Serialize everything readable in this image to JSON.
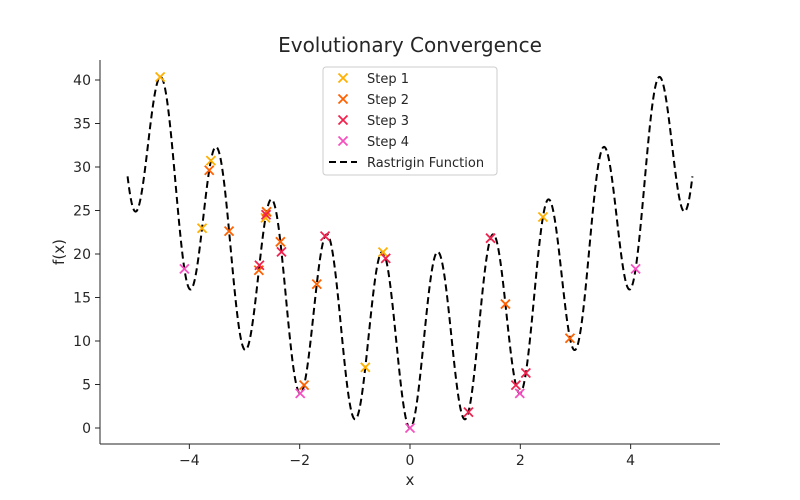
{
  "chart_data": {
    "type": "scatter",
    "title": "Evolutionary Convergence",
    "xlabel": "x",
    "ylabel": "f(x)",
    "xlim": [
      -5.62,
      5.62
    ],
    "ylim": [
      -1.84,
      42.3
    ],
    "xticks": [
      -4,
      -2,
      0,
      2,
      4
    ],
    "yticks": [
      0,
      5,
      10,
      15,
      20,
      25,
      30,
      35,
      40
    ],
    "grid": false,
    "legend_position": "top-center",
    "curve": {
      "name": "Rastrigin Function",
      "formula": "10 + x^2 - 10cos(2πx)",
      "x_range": [
        -5.12,
        5.12
      ],
      "color": "#000000",
      "style": "dashed"
    },
    "series": [
      {
        "name": "Step 1",
        "color": "#FFB000",
        "x": [
          -4.53,
          -3.61,
          -3.77,
          -2.62,
          -0.81,
          -0.49,
          2.41
        ]
      },
      {
        "name": "Step 2",
        "color": "#FE6100",
        "x": [
          -3.64,
          -3.28,
          -2.74,
          -2.6,
          -2.35,
          -1.92,
          -1.69,
          1.73,
          2.9
        ]
      },
      {
        "name": "Step 3",
        "color": "#F0234E",
        "x": [
          -2.73,
          -2.61,
          -2.33,
          -1.54,
          -0.44,
          1.06,
          1.46,
          1.92,
          2.1
        ]
      },
      {
        "name": "Step 4",
        "color": "#F550C0",
        "x": [
          -4.09,
          -1.99,
          0.0,
          1.99,
          4.09
        ]
      }
    ]
  }
}
